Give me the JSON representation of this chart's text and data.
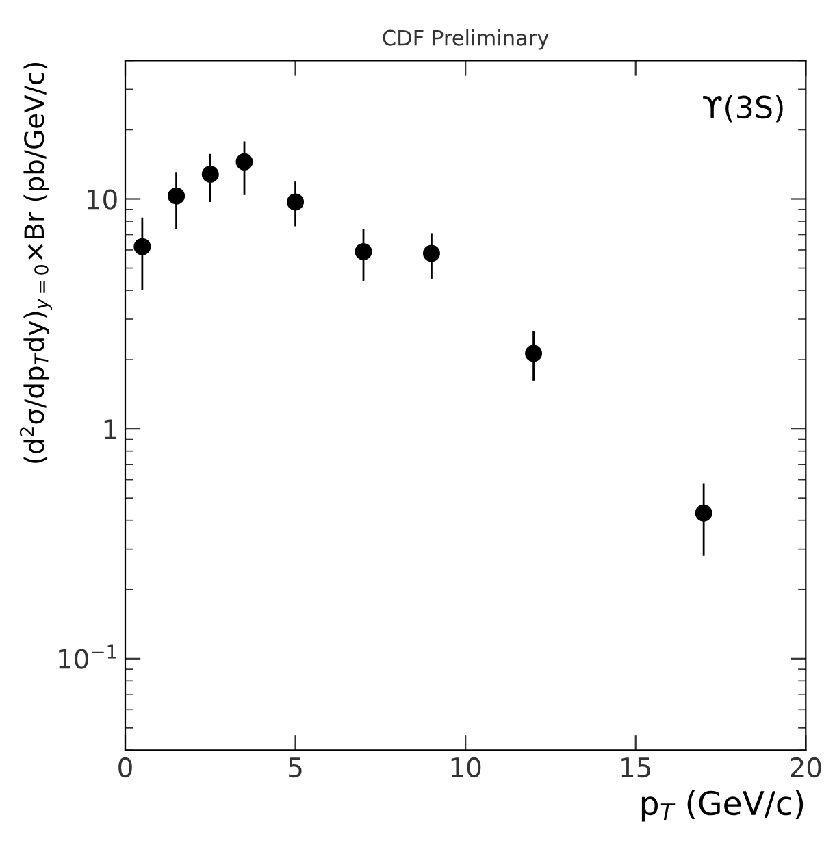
{
  "chart_data": {
    "type": "scatter",
    "title": "CDF Preliminary",
    "xlabel": "p$_{T}$ (GeV/c)",
    "ylabel": "(d$^{2}$σ/dp$_{T}$dy)$_{y=0}$×Br (pb/GeV/c)",
    "annotations": [
      "ϒ(3S)"
    ],
    "x": [
      0.5,
      1.5,
      2.5,
      3.5,
      5,
      7,
      9,
      12,
      17
    ],
    "series": [
      {
        "color": "#000000",
        "values": [
          6.2,
          10.3,
          12.8,
          14.5,
          9.7,
          5.9,
          5.8,
          2.13,
          0.43
        ],
        "errors": [
          [
            4.0,
            8.3
          ],
          [
            7.4,
            13.1
          ],
          [
            9.7,
            15.7
          ],
          [
            10.4,
            17.8
          ],
          [
            7.6,
            11.9
          ],
          [
            4.4,
            7.4
          ],
          [
            4.5,
            7.1
          ],
          [
            1.62,
            2.66
          ],
          [
            0.28,
            0.58
          ]
        ]
      }
    ],
    "log": "y",
    "xlim": [
      0,
      20
    ],
    "xticks": [
      0,
      5,
      10,
      15,
      20
    ],
    "ylim": [
      0.04,
      40
    ],
    "yticks": [
      {
        "value": 0.1,
        "label": "10$^{−1}$"
      },
      1,
      10
    ],
    "marker": "circle",
    "grid": false,
    "legend": false
  }
}
